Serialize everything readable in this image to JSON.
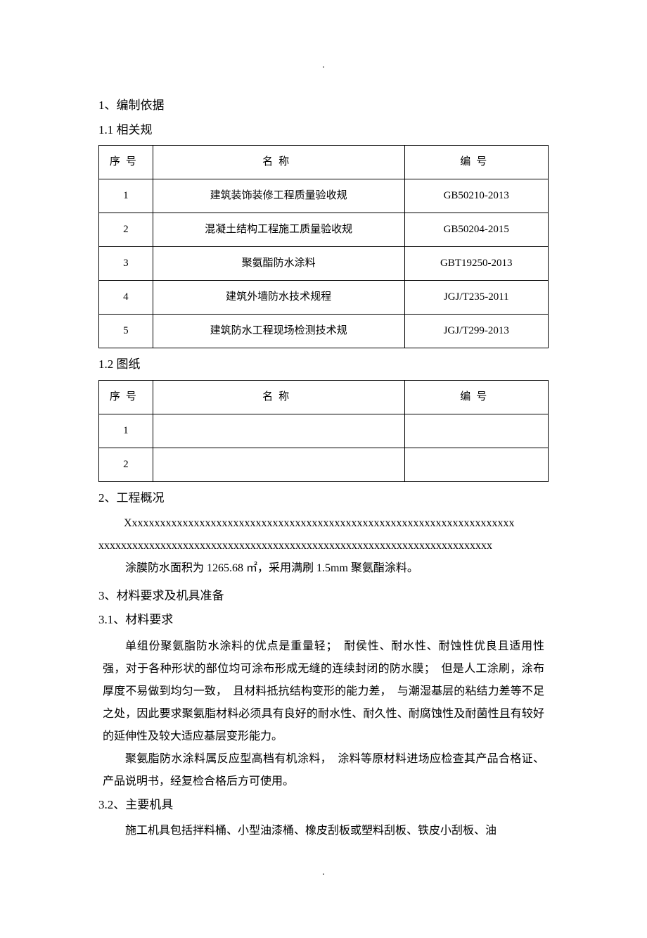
{
  "section1": {
    "heading": "1、编制依据",
    "sub1": {
      "heading": "1.1 相关规",
      "table": {
        "headers": {
          "seq": "序号",
          "name": "名称",
          "code": "编号"
        },
        "rows": [
          {
            "seq": "1",
            "name": "建筑装饰装修工程质量验收规",
            "code": "GB50210-2013"
          },
          {
            "seq": "2",
            "name": "混凝土结构工程施工质量验收规",
            "code": "GB50204-2015"
          },
          {
            "seq": "3",
            "name": "聚氨酯防水涂料",
            "code": "GBT19250-2013"
          },
          {
            "seq": "4",
            "name": "建筑外墙防水技术规程",
            "code": "JGJ/T235-2011"
          },
          {
            "seq": "5",
            "name": "建筑防水工程现场检测技术规",
            "code": "JGJ/T299-2013"
          }
        ]
      }
    },
    "sub2": {
      "heading": "1.2 图纸",
      "table": {
        "headers": {
          "seq": "序号",
          "name": "名称",
          "code": "编号"
        },
        "rows": [
          {
            "seq": "1",
            "name": "",
            "code": ""
          },
          {
            "seq": "2",
            "name": "",
            "code": ""
          }
        ]
      }
    }
  },
  "section2": {
    "heading": "2、工程概况",
    "xline1": "Xxxxxxxxxxxxxxxxxxxxxxxxxxxxxxxxxxxxxxxxxxxxxxxxxxxxxxxxxxxxxxxxxxxxx",
    "xline2": "xxxxxxxxxxxxxxxxxxxxxxxxxxxxxxxxxxxxxxxxxxxxxxxxxxxxxxxxxxxxxxxxxxxxxx",
    "para": "涂膜防水面积为 1265.68 ㎡，采用满刷 1.5mm 聚氨酯涂料。"
  },
  "section3": {
    "heading": "3、材料要求及机具准备",
    "sub1": {
      "heading": "3.1、材料要求",
      "p1": "单组份聚氨脂防水涂料的优点是重量轻；　耐侯性、耐水性、耐蚀性优良且适用性强，对于各种形状的部位均可涂布形成无缝的连续封闭的防水膜；　但是人工涂刷，涂布厚度不易做到均匀一致，　且材料抵抗结构变形的能力差，　与潮湿基层的粘结力差等不足之处，因此要求聚氨脂材料必须具有良好的耐水性、耐久性、耐腐蚀性及耐菌性且有较好的延伸性及较大适应基层变形能力。",
      "p2": "聚氨脂防水涂料属反应型高档有机涂料，　涂料等原材料进场应检查其产品合格证、产品说明书，经复检合格后方可使用。"
    },
    "sub2": {
      "heading": "3.2、主要机具",
      "p1": "施工机具包括拌料桶、小型油漆桶、橡皮刮板或塑料刮板、铁皮小刮板、油"
    }
  },
  "dots": "."
}
